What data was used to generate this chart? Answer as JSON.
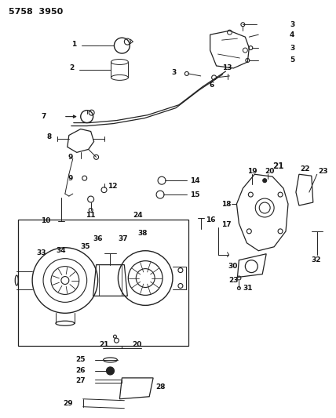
{
  "title": "5758  3950",
  "bg_color": "#ffffff",
  "line_color": "#222222",
  "figsize": [
    4.28,
    5.33
  ],
  "dpi": 100,
  "label_fontsize": 6.5,
  "title_fontsize": 8
}
